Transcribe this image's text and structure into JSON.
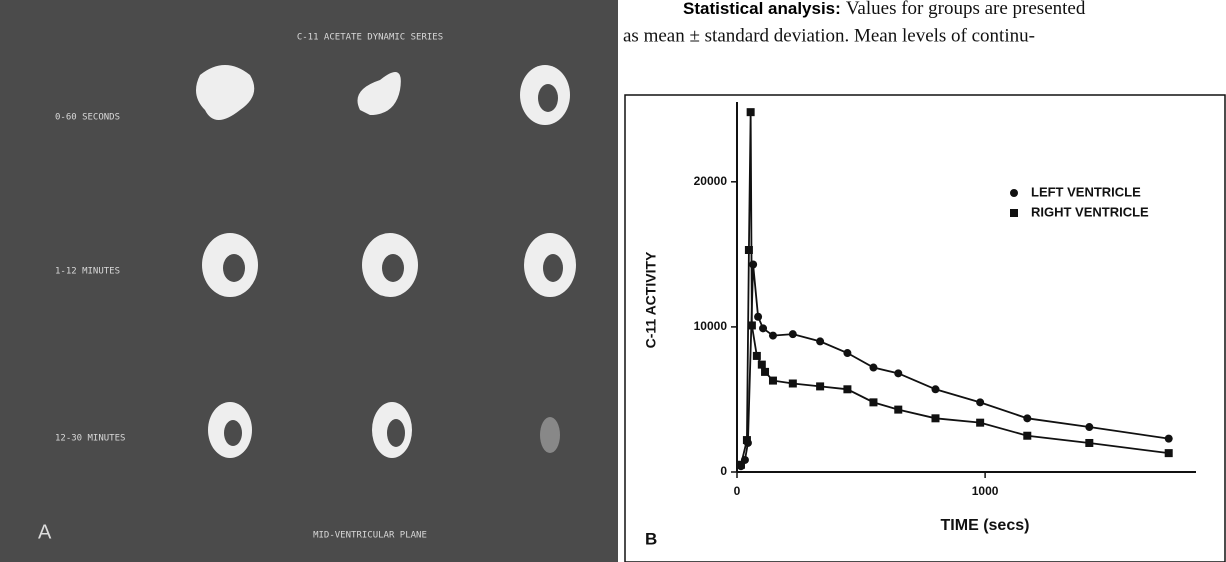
{
  "panel_a": {
    "title": "C-11 ACETATE DYNAMIC SERIES",
    "rows": [
      "0-60 SECONDS",
      "1-12 MINUTES",
      "12-30 MINUTES"
    ],
    "label": "A",
    "footer": "MID-VENTRICULAR PLANE"
  },
  "paragraph": {
    "lead": "Statistical analysis:",
    "line1": "Values for groups are presented",
    "line2": "as mean ± standard deviation. Mean levels of continu-"
  },
  "chart_data": {
    "type": "line",
    "panel_label": "B",
    "x_label": "TIME  (secs)",
    "y_label": "C-11  ACTIVITY",
    "xlim": [
      0,
      1850
    ],
    "xticks": [
      0,
      1000
    ],
    "ylim": [
      0,
      25500
    ],
    "yticks": [
      0,
      10000,
      20000
    ],
    "legend": "upper right",
    "series": [
      {
        "name": "LEFT VENTRICLE",
        "marker": "circle",
        "color": "#111111",
        "x": [
          16,
          32,
          44,
          65,
          85,
          105,
          145,
          225,
          335,
          445,
          550,
          650,
          800,
          980,
          1170,
          1420,
          1740
        ],
        "values": [
          400,
          830,
          2000,
          14300,
          10700,
          9900,
          9400,
          9500,
          9000,
          8200,
          7200,
          6800,
          5700,
          4800,
          3700,
          3100,
          2300
        ]
      },
      {
        "name": "RIGHT VENTRICLE",
        "marker": "square",
        "color": "#111111",
        "x": [
          16,
          40,
          48,
          55,
          60,
          80,
          100,
          113,
          145,
          225,
          335,
          445,
          550,
          650,
          800,
          980,
          1170,
          1420,
          1740
        ],
        "values": [
          500,
          2200,
          15300,
          24800,
          10100,
          8000,
          7400,
          6900,
          6300,
          6100,
          5900,
          5700,
          4800,
          4300,
          3700,
          3400,
          2500,
          2000,
          1300
        ]
      }
    ]
  }
}
